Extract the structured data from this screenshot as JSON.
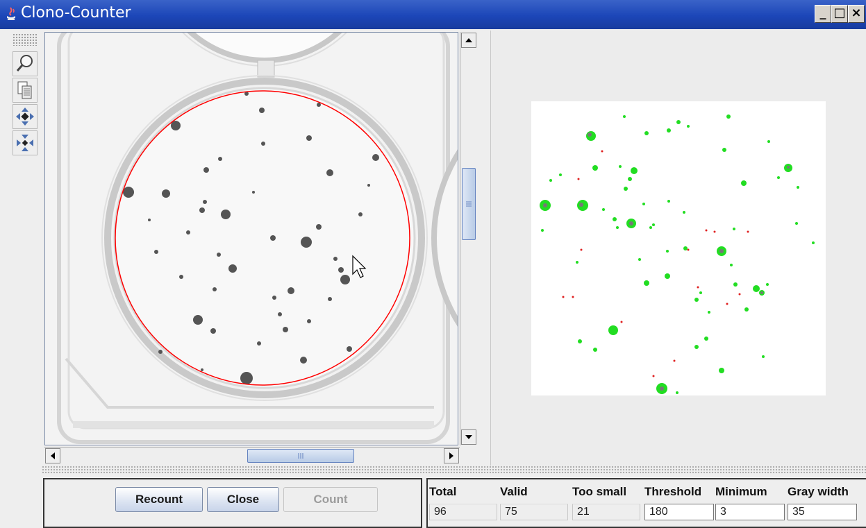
{
  "window": {
    "title": "Clono-Counter",
    "controls": {
      "minimize": "_",
      "maximize": "□",
      "close": "×"
    }
  },
  "toolbar": {
    "tools": [
      {
        "icon": "magnifier-icon"
      },
      {
        "icon": "copy-icon"
      },
      {
        "icon": "pan-icon"
      },
      {
        "icon": "fit-icon"
      }
    ]
  },
  "buttons": {
    "recount": "Recount",
    "close": "Close",
    "count": "Count"
  },
  "stats": {
    "total": {
      "label": "Total",
      "value": "96"
    },
    "valid": {
      "label": "Valid",
      "value": "75"
    },
    "too_small": {
      "label": "Too small",
      "value": "21"
    },
    "threshold": {
      "label": "Threshold",
      "value": "180"
    },
    "minimum": {
      "label": "Minimum",
      "value": "3"
    },
    "gray_width": {
      "label": "Gray width",
      "value": "35"
    }
  },
  "colors": {
    "selection_circle": "#ff0000",
    "valid_colony": "#22dd22",
    "rejected_colony": "#e02020",
    "titlebar": "#1c46b8"
  }
}
